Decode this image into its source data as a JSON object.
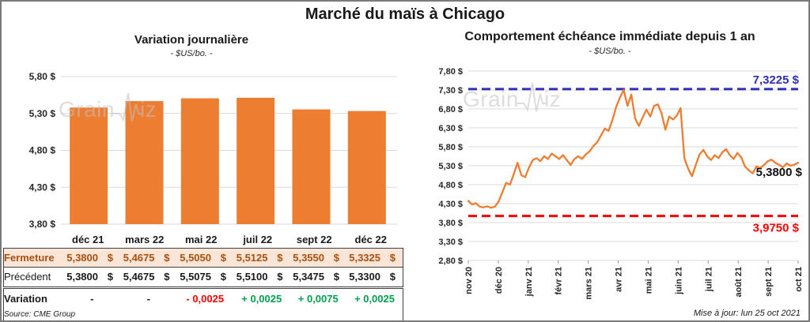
{
  "frame": {
    "main_title": "Marché du maïs à Chicago",
    "watermark": {
      "pre": "Grain",
      "post": "iz"
    },
    "source": "Source: CME Group",
    "updated": "Mise à jour: lun 25 oct 2021"
  },
  "colors": {
    "orange": "#ED7D31",
    "blue": "#2E2EB8",
    "red": "#FF0000",
    "green": "#00A050",
    "grid": "#D9D9D9",
    "axis_text": "#262626"
  },
  "chart_data": [
    {
      "type": "bar",
      "title": "Variation journalière",
      "subtitle": "- $US/bo. -",
      "categories": [
        "déc 21",
        "mars 22",
        "mai 22",
        "juil 22",
        "sept 22",
        "déc 22"
      ],
      "values": [
        5.38,
        5.4675,
        5.505,
        5.5125,
        5.355,
        5.3325
      ],
      "ylim": [
        3.8,
        5.8
      ],
      "ytick_labels": [
        "5,80 $",
        "5,30 $",
        "4,80 $",
        "4,30 $",
        "3,80 $"
      ],
      "bar_color": "#ED7D31",
      "grid": true,
      "legend": "none"
    },
    {
      "type": "line",
      "title": "Comportement échéance immédiate depuis 1 an",
      "subtitle": "- $US/bo. -",
      "x_labels": [
        "nov 20",
        "déc 20",
        "janv 21",
        "févr 21",
        "mars 21",
        "avr 21",
        "mai 21",
        "juin 21",
        "juil 21",
        "août 21",
        "sept 21",
        "oct 21"
      ],
      "values": [
        4.37,
        4.28,
        4.31,
        4.22,
        4.2,
        4.23,
        4.19,
        4.22,
        4.35,
        4.6,
        4.85,
        4.8,
        5.08,
        5.38,
        5.05,
        5.0,
        5.25,
        5.45,
        5.5,
        5.42,
        5.55,
        5.48,
        5.62,
        5.55,
        5.48,
        5.58,
        5.45,
        5.32,
        5.48,
        5.55,
        5.48,
        5.6,
        5.68,
        5.82,
        5.92,
        6.1,
        6.28,
        6.22,
        6.5,
        6.85,
        7.1,
        7.3,
        6.88,
        7.18,
        6.55,
        6.35,
        6.58,
        6.78,
        6.6,
        6.88,
        6.92,
        6.68,
        6.25,
        6.6,
        6.52,
        6.62,
        6.82,
        5.5,
        5.22,
        5.02,
        5.32,
        5.6,
        5.72,
        5.55,
        5.45,
        5.58,
        5.5,
        5.65,
        5.74,
        5.58,
        5.48,
        5.64,
        5.52,
        5.28,
        5.18,
        5.1,
        5.28,
        5.24,
        5.32,
        5.42,
        5.46,
        5.38,
        5.32,
        5.26,
        5.36,
        5.3,
        5.33,
        5.38
      ],
      "ylim": [
        2.8,
        7.8
      ],
      "ytick_labels": [
        "7,80 $",
        "7,30 $",
        "6,80 $",
        "6,30 $",
        "5,80 $",
        "5,30 $",
        "4,80 $",
        "4,30 $",
        "3,80 $",
        "3,30 $",
        "2,80 $"
      ],
      "line_color": "#ED7D31",
      "hlines": [
        {
          "value": 7.3225,
          "label": "7,3225 $",
          "color": "#2E2EB8"
        },
        {
          "value": 3.975,
          "label": "3,9750 $",
          "color": "#FF0000"
        }
      ],
      "last_value_label": "5,3800 $",
      "grid": true,
      "legend": "none"
    }
  ],
  "table": {
    "headers": [
      "",
      "déc 21",
      "mars 22",
      "mai 22",
      "juil 22",
      "sept 22",
      "déc 22"
    ],
    "rows": [
      {
        "label": "Fermeture",
        "kind": "close",
        "cells": [
          [
            "5,3800",
            "$"
          ],
          [
            "5,4675",
            "$"
          ],
          [
            "5,5050",
            "$"
          ],
          [
            "5,5125",
            "$"
          ],
          [
            "5,3550",
            "$"
          ],
          [
            "5,3325",
            "$"
          ]
        ]
      },
      {
        "label": "Précédent",
        "kind": "prev",
        "cells": [
          [
            "5,3800",
            "$"
          ],
          [
            "5,4675",
            "$"
          ],
          [
            "5,5075",
            "$"
          ],
          [
            "5,5100",
            "$"
          ],
          [
            "5,3475",
            "$"
          ],
          [
            "5,3300",
            "$"
          ]
        ]
      },
      {
        "label": "Variation",
        "kind": "var",
        "cells": [
          [
            "-",
            "none"
          ],
          [
            "-",
            "none"
          ],
          [
            "- 0,0025",
            "neg"
          ],
          [
            "+ 0,0025",
            "pos"
          ],
          [
            "+ 0,0075",
            "pos"
          ],
          [
            "+ 0,0025",
            "pos"
          ]
        ]
      }
    ]
  }
}
